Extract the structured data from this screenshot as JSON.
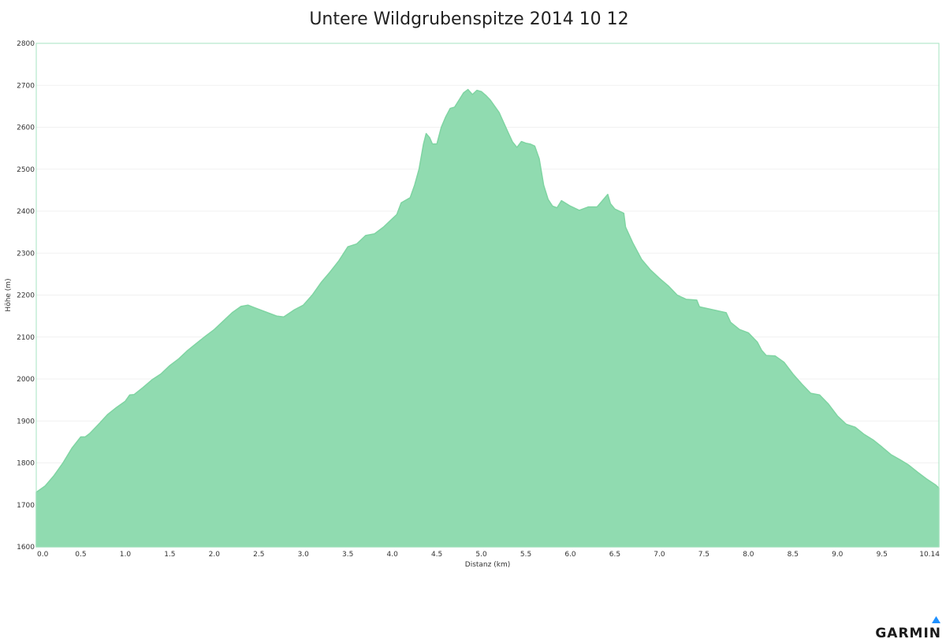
{
  "brand": {
    "name": "GARMIN",
    "triangle_color": "#1e90ff"
  },
  "colors": {
    "fill": "#90dbb0",
    "stroke": "#7fd4a2",
    "frame": "#a6e3c0",
    "grid": "#f1f1f1"
  },
  "chart_data": {
    "type": "area",
    "title": "Untere Wildgrubenspitze 2014 10 12",
    "xlabel": "Distanz   (km)",
    "ylabel": "Höhe (m)",
    "xlim": [
      0,
      10.14
    ],
    "ylim": [
      1600,
      2800
    ],
    "x_ticks": [
      "0.0",
      "0.5",
      "1.0",
      "1.5",
      "2.0",
      "2.5",
      "3.0",
      "3.5",
      "4.0",
      "4.5",
      "5.0",
      "5.5",
      "6.0",
      "6.5",
      "7.0",
      "7.5",
      "8.0",
      "8.5",
      "9.0",
      "9.5",
      "10.14"
    ],
    "y_ticks": [
      "1600",
      "1700",
      "1800",
      "1900",
      "2000",
      "2100",
      "2200",
      "2300",
      "2400",
      "2500",
      "2600",
      "2700",
      "2800"
    ],
    "grid": true,
    "legend": "none",
    "x": [
      0.0,
      0.1,
      0.2,
      0.3,
      0.4,
      0.5,
      0.55,
      0.6,
      0.7,
      0.8,
      0.9,
      1.0,
      1.05,
      1.1,
      1.2,
      1.3,
      1.4,
      1.5,
      1.6,
      1.7,
      1.8,
      1.9,
      2.0,
      2.1,
      2.2,
      2.3,
      2.38,
      2.45,
      2.5,
      2.6,
      2.7,
      2.78,
      2.9,
      3.0,
      3.1,
      3.2,
      3.3,
      3.4,
      3.5,
      3.6,
      3.7,
      3.8,
      3.9,
      4.0,
      4.05,
      4.1,
      4.2,
      4.25,
      4.3,
      4.35,
      4.38,
      4.42,
      4.45,
      4.5,
      4.55,
      4.6,
      4.65,
      4.7,
      4.75,
      4.8,
      4.85,
      4.9,
      4.95,
      5.0,
      5.05,
      5.1,
      5.2,
      5.3,
      5.35,
      5.4,
      5.45,
      5.5,
      5.55,
      5.6,
      5.65,
      5.7,
      5.75,
      5.8,
      5.85,
      5.9,
      6.0,
      6.1,
      6.2,
      6.3,
      6.38,
      6.42,
      6.45,
      6.5,
      6.6,
      6.62,
      6.7,
      6.8,
      6.9,
      7.0,
      7.1,
      7.2,
      7.3,
      7.42,
      7.45,
      7.6,
      7.75,
      7.8,
      7.9,
      8.0,
      8.1,
      8.15,
      8.2,
      8.3,
      8.4,
      8.5,
      8.6,
      8.7,
      8.8,
      8.9,
      9.0,
      9.1,
      9.2,
      9.3,
      9.4,
      9.5,
      9.6,
      9.7,
      9.8,
      9.9,
      10.0,
      10.1,
      10.14
    ],
    "values": [
      1730,
      1745,
      1770,
      1800,
      1835,
      1862,
      1862,
      1870,
      1892,
      1915,
      1932,
      1947,
      1962,
      1963,
      1980,
      1998,
      2012,
      2032,
      2048,
      2068,
      2085,
      2102,
      2118,
      2138,
      2158,
      2173,
      2176,
      2170,
      2166,
      2158,
      2150,
      2148,
      2165,
      2176,
      2200,
      2230,
      2255,
      2282,
      2315,
      2322,
      2342,
      2346,
      2362,
      2382,
      2392,
      2420,
      2432,
      2462,
      2500,
      2560,
      2585,
      2575,
      2560,
      2560,
      2600,
      2625,
      2645,
      2648,
      2665,
      2682,
      2690,
      2678,
      2688,
      2685,
      2676,
      2665,
      2635,
      2588,
      2565,
      2552,
      2566,
      2562,
      2560,
      2555,
      2525,
      2462,
      2428,
      2412,
      2408,
      2425,
      2412,
      2402,
      2410,
      2410,
      2430,
      2440,
      2418,
      2405,
      2395,
      2362,
      2325,
      2285,
      2260,
      2240,
      2222,
      2200,
      2190,
      2188,
      2172,
      2165,
      2158,
      2135,
      2118,
      2110,
      2088,
      2068,
      2056,
      2055,
      2040,
      2012,
      1988,
      1966,
      1962,
      1940,
      1912,
      1892,
      1885,
      1868,
      1855,
      1838,
      1820,
      1808,
      1795,
      1778,
      1762,
      1748,
      1740
    ]
  }
}
